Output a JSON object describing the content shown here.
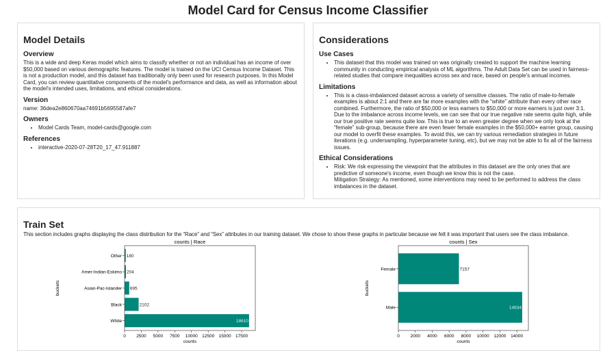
{
  "title": "Model Card for Census Income Classifier",
  "model_details": {
    "heading": "Model Details",
    "overview_heading": "Overview",
    "overview": "This is a wide and deep Keras model which aims to classify whether or not an individual has an income of over $50,000 based on various demographic features. The model is trained on the UCI Census Income Dataset. This is not a production model, and this dataset has traditionally only been used for research purposes. In this Model Card, you can review quantitative components of the model's performance and data, as well as information about the model's intended uses, limitations, and ethical considerations.",
    "version_heading": "Version",
    "version": "name: 36dea2e860670aa74691b5695587afe7",
    "owners_heading": "Owners",
    "owners": [
      "Model Cards Team, model-cards@google.com"
    ],
    "references_heading": "References",
    "references": [
      "interactive-2020-07-28T20_17_47.911887"
    ]
  },
  "considerations": {
    "heading": "Considerations",
    "use_cases_heading": "Use Cases",
    "use_cases": [
      "This dataset that this model was trained on was originally created to support the machine learning community in conducting empirical analysis of ML algorithms. The Adult Data Set can be used in fairness-related studies that compare inequalities across sex and race, based on people's annual incomes."
    ],
    "limitations_heading": "Limitations",
    "limitations": [
      "This is a class-imbalanced dataset across a variety of sensitive classes. The ratio of male-to-female examples is about 2:1 and there are far more examples with the “white” attribute than every other race combined. Furthermore, the ratio of $50,000 or less earners to $50,000 or more earners is just over 3:1. Due to the imbalance across income levels, we can see that our true negative rate seems quite high, while our true positive rate seems quite low. This is true to an even greater degree when we only look at the “female” sub-group, because there are even fewer female examples in the $50,000+ earner group, causing our model to overfit these examples. To avoid this, we can try various remediation strategies in future iterations (e.g. undersampling, hyperparameter tuning, etc), but we may not be able to fix all of the fairness issues."
    ],
    "ethical_heading": "Ethical Considerations",
    "ethical_risk": "Risk: We risk expressing the viewpoint that the attributes in this dataset are the only ones that are predictive of someone's income, even though we know this is not the case.",
    "ethical_mitigation": "Mitigation Strategy: As mentioned, some interventions may need to be performed to address the class imbalances in the dataset."
  },
  "train_set": {
    "heading": "Train Set",
    "description": "This section includes graphs displaying the class distribution for the “Race” and “Sex” attributes in our training dataset. We chose to show these graphs in particular because we felt it was important that users see the class imbalance."
  },
  "chart_data": [
    {
      "type": "bar",
      "orientation": "horizontal",
      "title": "counts | Race",
      "xlabel": "counts",
      "ylabel": "buckets",
      "categories": [
        "White",
        "Black",
        "Asian-Pac-Islander",
        "Amer-Indian-Eskimo",
        "Other"
      ],
      "values": [
        18610,
        2102,
        695,
        204,
        180
      ],
      "xticks": [
        0,
        2500,
        5000,
        7500,
        10000,
        12500,
        15000,
        17500
      ],
      "xlim": [
        0,
        19540
      ],
      "color": "#00877a"
    },
    {
      "type": "bar",
      "orientation": "horizontal",
      "title": "counts | Sex",
      "xlabel": "counts",
      "ylabel": "buckets",
      "categories": [
        "Male",
        "Female"
      ],
      "values": [
        14634,
        7157
      ],
      "xticks": [
        0,
        2000,
        4000,
        6000,
        8000,
        10000,
        12000,
        14000
      ],
      "xlim": [
        0,
        15366
      ],
      "color": "#00877a"
    }
  ]
}
